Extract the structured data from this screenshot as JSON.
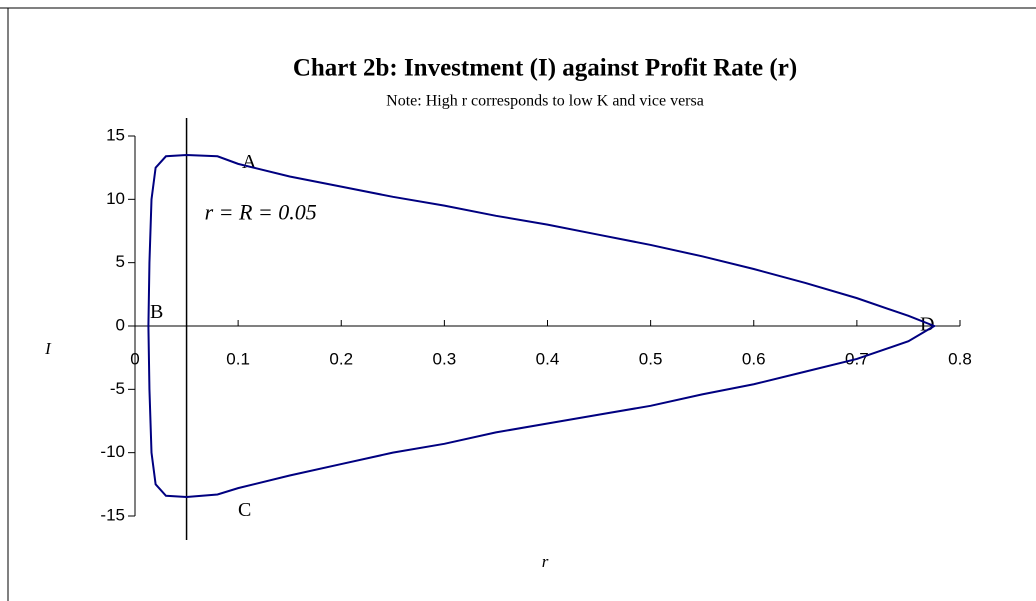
{
  "chart_data": {
    "type": "line",
    "title": "Chart 2b: Investment (I) against Profit Rate (r)",
    "subtitle": "Note: High r corresponds to low K and vice versa",
    "x_label": "r",
    "y_label": "I",
    "annotations": [
      "r = R = 0.05",
      "A",
      "B",
      "C",
      "D"
    ],
    "vline": 0.05,
    "xlim": [
      0,
      0.8
    ],
    "xticks": [
      0,
      0.1,
      0.2,
      0.3,
      0.4,
      0.5,
      0.6,
      0.7,
      0.8
    ],
    "ylim": [
      -15,
      15
    ],
    "yticks": [
      -15,
      -10,
      -5,
      0,
      5,
      10,
      15
    ],
    "series": [
      {
        "color": "#000080",
        "x": [
          0.013,
          0.014,
          0.016,
          0.02,
          0.03,
          0.05,
          0.08,
          0.1,
          0.15,
          0.2,
          0.25,
          0.3,
          0.35,
          0.4,
          0.45,
          0.5,
          0.55,
          0.6,
          0.65,
          0.7,
          0.75,
          0.775,
          0.75,
          0.7,
          0.65,
          0.6,
          0.55,
          0.5,
          0.45,
          0.4,
          0.35,
          0.3,
          0.25,
          0.2,
          0.15,
          0.1,
          0.08,
          0.05,
          0.03,
          0.02,
          0.016,
          0.014,
          0.013
        ],
        "values": [
          0,
          5,
          10,
          12.5,
          13.4,
          13.5,
          13.4,
          12.8,
          11.8,
          11,
          10.2,
          9.5,
          8.7,
          8,
          7.2,
          6.4,
          5.5,
          4.5,
          3.4,
          2.2,
          0.8,
          0,
          -1.2,
          -2.6,
          -3.6,
          -4.6,
          -5.4,
          -6.3,
          -7,
          -7.7,
          -8.4,
          -9.3,
          -10,
          -10.9,
          -11.8,
          -12.8,
          -13.3,
          -13.5,
          -13.4,
          -12.5,
          -10,
          -5,
          0
        ]
      }
    ]
  }
}
